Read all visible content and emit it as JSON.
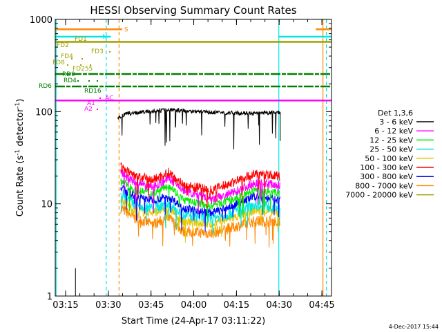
{
  "chart_data": {
    "type": "line",
    "title": "HESSI Observing Summary Count Rates",
    "ylabel_main": "Count Rate (s",
    "ylabel_sup1": "-1",
    "ylabel_mid": " detector",
    "ylabel_sup2": "-1",
    "ylabel_end": ")",
    "xlabel": "Start Time (24-Apr-17 03:11:22)",
    "timestamp": "4-Dec-2017 15:44",
    "yscale": "log",
    "ylim": [
      1,
      1000
    ],
    "xlim_minutes": [
      0,
      97
    ],
    "yticks": [
      {
        "value": 1,
        "label": "1"
      },
      {
        "value": 10,
        "label": "10"
      },
      {
        "value": 100,
        "label": "100"
      },
      {
        "value": 1000,
        "label": "1000"
      }
    ],
    "xticks": [
      {
        "minute": 3.63,
        "label": "03:15"
      },
      {
        "minute": 18.63,
        "label": "03:30"
      },
      {
        "minute": 33.63,
        "label": "03:45"
      },
      {
        "minute": 48.63,
        "label": "04:00"
      },
      {
        "minute": 63.63,
        "label": "04:15"
      },
      {
        "minute": 78.63,
        "label": "04:30"
      },
      {
        "minute": 93.63,
        "label": "04:45"
      }
    ],
    "legend_title": "Det 1,3,6",
    "series": [
      {
        "name": "3 - 6 keV",
        "color": "#000000"
      },
      {
        "name": "6 - 12 keV",
        "color": "#ff00ff"
      },
      {
        "name": "12 - 25 keV",
        "color": "#00ee00"
      },
      {
        "name": "25 - 50 keV",
        "color": "#00e5e5"
      },
      {
        "name": "50 - 100 keV",
        "color": "#e5c800"
      },
      {
        "name": "100 - 300 keV",
        "color": "#ff0000"
      },
      {
        "name": "300 - 800 keV",
        "color": "#0000ff"
      },
      {
        "name": "800 - 7000 keV",
        "color": "#ff8800"
      },
      {
        "name": "7000 - 20000 keV",
        "color": "#a0a000"
      }
    ],
    "series_levels": [
      {
        "name": "3 - 6 keV",
        "start": 22,
        "end": 79,
        "base": [
          [
            22,
            85
          ],
          [
            25,
            95
          ],
          [
            40,
            105
          ],
          [
            55,
            98
          ],
          [
            70,
            95
          ],
          [
            79,
            98
          ]
        ],
        "noise": 0.05,
        "dips": true
      },
      {
        "name": "6 - 12 keV",
        "start": 23,
        "end": 79,
        "base": [
          [
            23,
            22
          ],
          [
            28,
            17
          ],
          [
            34,
            15
          ],
          [
            40,
            19
          ],
          [
            45,
            14
          ],
          [
            55,
            11
          ],
          [
            62,
            13
          ],
          [
            70,
            17
          ],
          [
            79,
            16
          ]
        ],
        "noise": 0.12
      },
      {
        "name": "12 - 25 keV",
        "start": 23,
        "end": 79,
        "base": [
          [
            23,
            18
          ],
          [
            28,
            14
          ],
          [
            34,
            13
          ],
          [
            40,
            16
          ],
          [
            45,
            11
          ],
          [
            55,
            9.5
          ],
          [
            62,
            11
          ],
          [
            70,
            14
          ],
          [
            79,
            13
          ]
        ],
        "noise": 0.1
      },
      {
        "name": "25 - 50 keV",
        "start": 23,
        "end": 79,
        "base": [
          [
            23,
            13
          ],
          [
            28,
            10
          ],
          [
            34,
            9
          ],
          [
            40,
            10
          ],
          [
            45,
            7.5
          ],
          [
            55,
            7
          ],
          [
            62,
            8
          ],
          [
            70,
            10
          ],
          [
            79,
            9
          ]
        ],
        "noise": 0.15
      },
      {
        "name": "50 - 100 keV",
        "start": 23,
        "end": 79,
        "base": [
          [
            23,
            11
          ],
          [
            28,
            8.5
          ],
          [
            34,
            8
          ],
          [
            40,
            9
          ],
          [
            45,
            6.5
          ],
          [
            55,
            6
          ],
          [
            62,
            7
          ],
          [
            70,
            8.5
          ],
          [
            79,
            8
          ]
        ],
        "noise": 0.12
      },
      {
        "name": "100 - 300 keV",
        "start": 23,
        "end": 79,
        "base": [
          [
            23,
            25
          ],
          [
            28,
            20
          ],
          [
            34,
            18
          ],
          [
            40,
            22
          ],
          [
            45,
            16
          ],
          [
            55,
            14
          ],
          [
            62,
            17
          ],
          [
            70,
            21
          ],
          [
            79,
            20
          ]
        ],
        "noise": 0.12
      },
      {
        "name": "300 - 800 keV",
        "start": 23,
        "end": 79,
        "base": [
          [
            23,
            15
          ],
          [
            28,
            12
          ],
          [
            34,
            11
          ],
          [
            40,
            12
          ],
          [
            45,
            9
          ],
          [
            55,
            8
          ],
          [
            62,
            9.5
          ],
          [
            70,
            12
          ],
          [
            79,
            11
          ]
        ],
        "noise": 0.1
      },
      {
        "name": "800 - 7000 keV",
        "start": 23,
        "end": 79,
        "base": [
          [
            23,
            9
          ],
          [
            28,
            7
          ],
          [
            34,
            6
          ],
          [
            40,
            7
          ],
          [
            45,
            5
          ],
          [
            55,
            4.8
          ],
          [
            62,
            5.5
          ],
          [
            70,
            6.5
          ],
          [
            79,
            6.5
          ]
        ],
        "noise": 0.14
      }
    ],
    "flag_lines": [
      {
        "label": "S",
        "color": "#ff8800",
        "value": 780,
        "spans": [
          [
            0,
            23.5
          ],
          [
            91.5,
            97
          ]
        ]
      },
      {
        "label": "N",
        "color": "#00e5e5",
        "value": 650,
        "spans": [
          [
            0,
            19.5
          ],
          [
            78.5,
            97
          ]
        ]
      },
      {
        "label": "",
        "color": "#a0a000",
        "value": 570,
        "spans": [
          [
            0,
            97
          ]
        ]
      },
      {
        "label": "AC",
        "color": "#ff00ff",
        "value": 132,
        "spans": [
          [
            0,
            97
          ]
        ]
      }
    ],
    "vertical_lines": [
      {
        "minute": 0.3,
        "color": "#00e5e5",
        "style": "solid"
      },
      {
        "minute": 17.9,
        "color": "#00e5e5",
        "style": "dashed"
      },
      {
        "minute": 22.4,
        "color": "#ff8800",
        "style": "dashed"
      },
      {
        "minute": 78.5,
        "color": "#00e5e5",
        "style": "solid"
      },
      {
        "minute": 94.0,
        "color": "#ff8800",
        "style": "solid"
      },
      {
        "minute": 95.2,
        "color": "#00e5e5",
        "style": "dashed"
      }
    ],
    "flag_labels": [
      {
        "text": "FD1",
        "color": "#a0a000"
      },
      {
        "text": "FD2",
        "color": "#a0a000"
      },
      {
        "text": "FD3",
        "color": "#a0a000"
      },
      {
        "text": "FD4",
        "color": "#a0a000"
      },
      {
        "text": "FD8",
        "color": "#a0a000"
      },
      {
        "text": "FD255",
        "color": "#a0a000"
      },
      {
        "text": "RD9",
        "color": "#008000"
      },
      {
        "text": "RD4",
        "color": "#008000"
      },
      {
        "text": "RD6",
        "color": "#008000"
      },
      {
        "text": "RD16",
        "color": "#008000"
      },
      {
        "text": "A1",
        "color": "#ff00ff"
      },
      {
        "text": "A2",
        "color": "#ff00ff"
      }
    ]
  }
}
